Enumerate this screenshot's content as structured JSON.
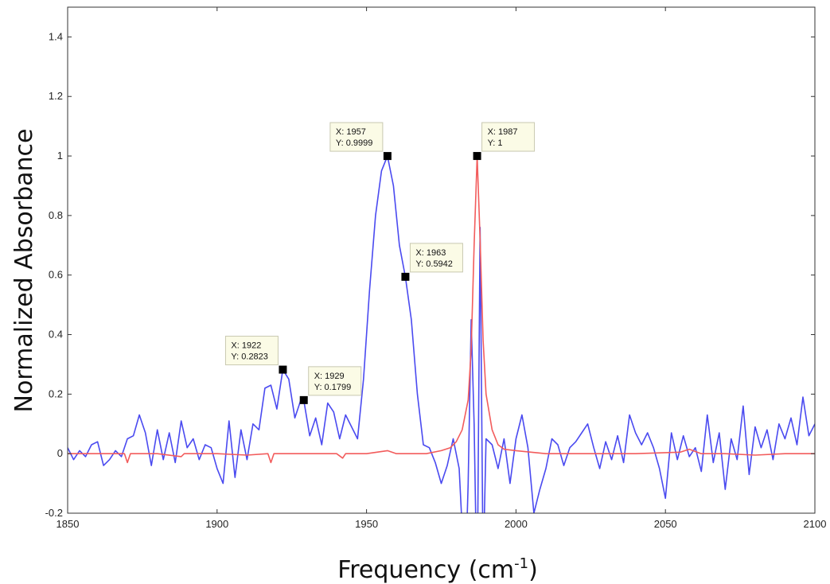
{
  "chart_data": {
    "type": "line",
    "xlabel": "Frequency (cm",
    "xlabel_sup": "-1",
    "xlabel_close": ")",
    "ylabel": "Normalized Absorbance",
    "xlim": [
      1850,
      2100
    ],
    "ylim": [
      -0.2,
      1.5
    ],
    "x_ticks": [
      "1850",
      "1900",
      "1950",
      "2000",
      "2050",
      "2100"
    ],
    "y_ticks": [
      "-0.2",
      "0",
      "0.2",
      "0.4",
      "0.6",
      "0.8",
      "1",
      "1.2",
      "1.4"
    ],
    "grid": false,
    "colors": {
      "blue": "#4a4af0",
      "red": "#f25c5c"
    },
    "series": [
      {
        "color": "blue",
        "points": [
          [
            1850,
            0.02
          ],
          [
            1852,
            -0.02
          ],
          [
            1854,
            0.01
          ],
          [
            1856,
            -0.01
          ],
          [
            1858,
            0.03
          ],
          [
            1860,
            0.04
          ],
          [
            1862,
            -0.04
          ],
          [
            1864,
            -0.02
          ],
          [
            1866,
            0.01
          ],
          [
            1868,
            -0.01
          ],
          [
            1870,
            0.05
          ],
          [
            1872,
            0.06
          ],
          [
            1874,
            0.13
          ],
          [
            1876,
            0.07
          ],
          [
            1878,
            -0.04
          ],
          [
            1880,
            0.08
          ],
          [
            1882,
            -0.02
          ],
          [
            1884,
            0.07
          ],
          [
            1886,
            -0.03
          ],
          [
            1888,
            0.11
          ],
          [
            1890,
            0.02
          ],
          [
            1892,
            0.05
          ],
          [
            1894,
            -0.02
          ],
          [
            1896,
            0.03
          ],
          [
            1898,
            0.02
          ],
          [
            1900,
            -0.05
          ],
          [
            1902,
            -0.1
          ],
          [
            1904,
            0.11
          ],
          [
            1906,
            -0.08
          ],
          [
            1908,
            0.08
          ],
          [
            1910,
            -0.02
          ],
          [
            1912,
            0.1
          ],
          [
            1914,
            0.08
          ],
          [
            1916,
            0.22
          ],
          [
            1918,
            0.23
          ],
          [
            1920,
            0.15
          ],
          [
            1922,
            0.2823
          ],
          [
            1924,
            0.25
          ],
          [
            1926,
            0.12
          ],
          [
            1928,
            0.18
          ],
          [
            1929,
            0.1799
          ],
          [
            1931,
            0.06
          ],
          [
            1933,
            0.12
          ],
          [
            1935,
            0.03
          ],
          [
            1937,
            0.17
          ],
          [
            1939,
            0.14
          ],
          [
            1941,
            0.05
          ],
          [
            1943,
            0.13
          ],
          [
            1945,
            0.09
          ],
          [
            1947,
            0.05
          ],
          [
            1949,
            0.25
          ],
          [
            1951,
            0.55
          ],
          [
            1953,
            0.8
          ],
          [
            1955,
            0.95
          ],
          [
            1957,
            0.9999
          ],
          [
            1959,
            0.9
          ],
          [
            1961,
            0.7
          ],
          [
            1963,
            0.5942
          ],
          [
            1965,
            0.45
          ],
          [
            1967,
            0.2
          ],
          [
            1969,
            0.03
          ],
          [
            1971,
            0.02
          ],
          [
            1973,
            -0.03
          ],
          [
            1975,
            -0.1
          ],
          [
            1977,
            -0.04
          ],
          [
            1979,
            0.05
          ],
          [
            1981,
            -0.05
          ],
          [
            1983,
            -0.45
          ],
          [
            1984,
            -0.1
          ],
          [
            1985,
            0.45
          ],
          [
            1986,
            0.1
          ],
          [
            1987,
            -0.5
          ],
          [
            1988,
            0.76
          ],
          [
            1989,
            -0.4
          ],
          [
            1990,
            0.05
          ],
          [
            1992,
            0.03
          ],
          [
            1994,
            -0.05
          ],
          [
            1996,
            0.05
          ],
          [
            1998,
            -0.1
          ],
          [
            2000,
            0.05
          ],
          [
            2002,
            0.13
          ],
          [
            2004,
            0.02
          ],
          [
            2006,
            -0.2
          ],
          [
            2008,
            -0.12
          ],
          [
            2010,
            -0.05
          ],
          [
            2012,
            0.05
          ],
          [
            2014,
            0.03
          ],
          [
            2016,
            -0.04
          ],
          [
            2018,
            0.02
          ],
          [
            2020,
            0.04
          ],
          [
            2022,
            0.07
          ],
          [
            2024,
            0.1
          ],
          [
            2026,
            0.02
          ],
          [
            2028,
            -0.05
          ],
          [
            2030,
            0.04
          ],
          [
            2032,
            -0.02
          ],
          [
            2034,
            0.06
          ],
          [
            2036,
            -0.03
          ],
          [
            2038,
            0.13
          ],
          [
            2040,
            0.07
          ],
          [
            2042,
            0.03
          ],
          [
            2044,
            0.07
          ],
          [
            2046,
            0.02
          ],
          [
            2048,
            -0.05
          ],
          [
            2050,
            -0.15
          ],
          [
            2052,
            0.07
          ],
          [
            2054,
            -0.02
          ],
          [
            2056,
            0.06
          ],
          [
            2058,
            -0.01
          ],
          [
            2060,
            0.02
          ],
          [
            2062,
            -0.06
          ],
          [
            2064,
            0.13
          ],
          [
            2066,
            -0.03
          ],
          [
            2068,
            0.07
          ],
          [
            2070,
            -0.12
          ],
          [
            2072,
            0.05
          ],
          [
            2074,
            -0.02
          ],
          [
            2076,
            0.16
          ],
          [
            2078,
            -0.07
          ],
          [
            2080,
            0.09
          ],
          [
            2082,
            0.02
          ],
          [
            2084,
            0.08
          ],
          [
            2086,
            -0.02
          ],
          [
            2088,
            0.1
          ],
          [
            2090,
            0.05
          ],
          [
            2092,
            0.12
          ],
          [
            2094,
            0.03
          ],
          [
            2096,
            0.19
          ],
          [
            2098,
            0.06
          ],
          [
            2100,
            0.1
          ]
        ]
      },
      {
        "color": "red",
        "points": [
          [
            1850,
            0.0
          ],
          [
            1860,
            0.0
          ],
          [
            1869,
            0.0
          ],
          [
            1870,
            -0.03
          ],
          [
            1871,
            0.0
          ],
          [
            1880,
            0.0
          ],
          [
            1888,
            -0.01
          ],
          [
            1889,
            0.0
          ],
          [
            1900,
            0.0
          ],
          [
            1910,
            -0.005
          ],
          [
            1917,
            0.0
          ],
          [
            1918,
            -0.03
          ],
          [
            1919,
            0.0
          ],
          [
            1930,
            0.0
          ],
          [
            1940,
            0.0
          ],
          [
            1942,
            -0.015
          ],
          [
            1943,
            0.0
          ],
          [
            1950,
            0.0
          ],
          [
            1957,
            0.01
          ],
          [
            1960,
            0.0
          ],
          [
            1970,
            0.0
          ],
          [
            1975,
            0.01
          ],
          [
            1978,
            0.02
          ],
          [
            1980,
            0.04
          ],
          [
            1982,
            0.08
          ],
          [
            1984,
            0.18
          ],
          [
            1985,
            0.35
          ],
          [
            1986,
            0.7
          ],
          [
            1987,
            1.0
          ],
          [
            1988,
            0.72
          ],
          [
            1989,
            0.38
          ],
          [
            1990,
            0.2
          ],
          [
            1992,
            0.08
          ],
          [
            1994,
            0.03
          ],
          [
            1996,
            0.015
          ],
          [
            2000,
            0.01
          ],
          [
            2010,
            0.0
          ],
          [
            2020,
            0.0
          ],
          [
            2040,
            0.0
          ],
          [
            2055,
            0.005
          ],
          [
            2058,
            0.015
          ],
          [
            2062,
            0.0
          ],
          [
            2070,
            0.0
          ],
          [
            2080,
            -0.005
          ],
          [
            2090,
            0.0
          ],
          [
            2100,
            0.0
          ]
        ]
      }
    ],
    "annotations": [
      {
        "x": 1922,
        "y": 0.2823,
        "line1": "X: 1922",
        "line2": "Y: 0.2823",
        "placement": "upper-left"
      },
      {
        "x": 1929,
        "y": 0.1799,
        "line1": "X: 1929",
        "line2": "Y: 0.1799",
        "placement": "upper-right"
      },
      {
        "x": 1957,
        "y": 0.9999,
        "line1": "X: 1957",
        "line2": "Y: 0.9999",
        "placement": "upper-left"
      },
      {
        "x": 1963,
        "y": 0.5942,
        "line1": "X: 1963",
        "line2": "Y: 0.5942",
        "placement": "upper-right"
      },
      {
        "x": 1987,
        "y": 1,
        "line1": "X: 1987",
        "line2": "Y: 1",
        "placement": "upper-right"
      }
    ]
  }
}
